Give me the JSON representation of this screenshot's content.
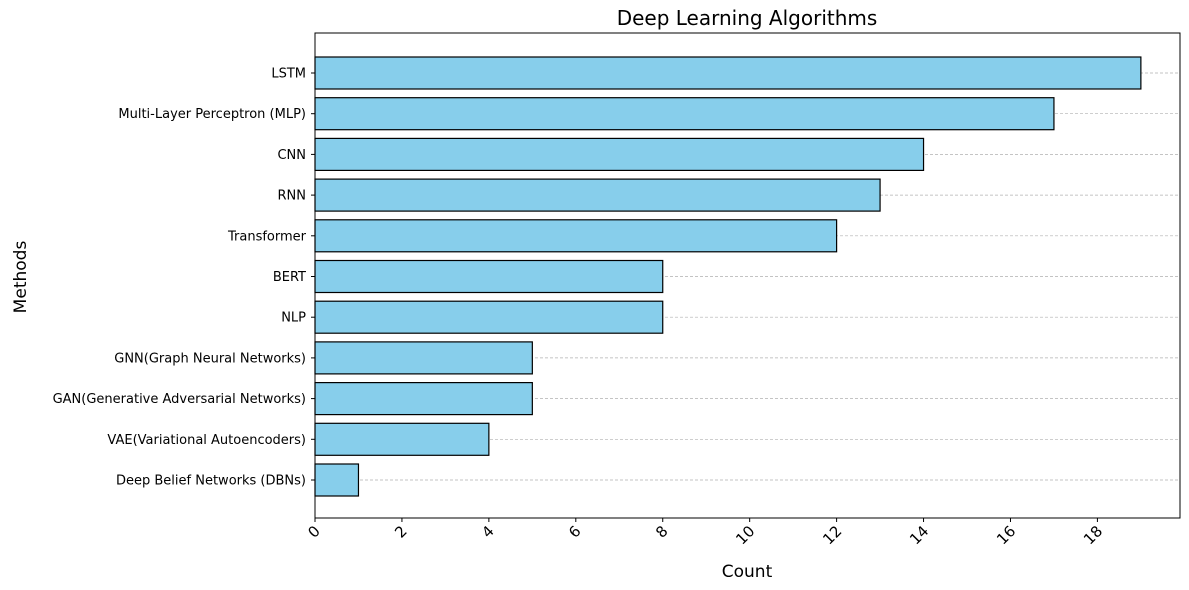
{
  "chart_data": {
    "type": "bar",
    "orientation": "horizontal",
    "title": "Deep Learning Algorithms",
    "xlabel": "Count",
    "ylabel": "Methods",
    "categories": [
      "LSTM",
      "Multi-Layer Perceptron (MLP)",
      "CNN",
      "RNN",
      "Transformer",
      "BERT",
      "NLP",
      "GNN(Graph Neural Networks)",
      "GAN(Generative Adversarial Networks)",
      "VAE(Variational Autoencoders)",
      "Deep Belief Networks (DBNs)"
    ],
    "values": [
      19,
      17,
      14,
      13,
      12,
      8,
      8,
      5,
      5,
      4,
      1
    ],
    "xlim": [
      0,
      19.9
    ],
    "xticks": [
      "0",
      "2",
      "4",
      "6",
      "8",
      "10",
      "12",
      "14",
      "16",
      "18"
    ],
    "xtick_rotation": -45,
    "grid": "horizontal dashed",
    "legend": "none",
    "bar_color": "#87ceeb",
    "edge_color": "#000000",
    "grid_color": "#b0b0b0"
  }
}
